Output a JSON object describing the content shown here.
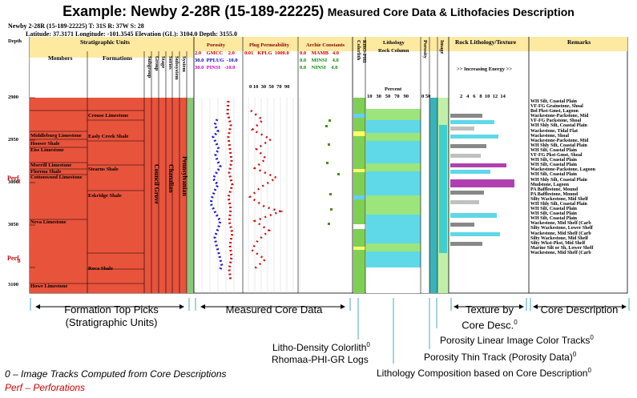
{
  "title": {
    "main": "Example: Newby 2-28R (15-189-22225)",
    "sub": "Measured Core Data & Lithofacies Description"
  },
  "well_header": {
    "line1": "Newby 2-28R (15-189-22225) T: 31S R: 37W S: 28",
    "line2": "Latitude: 37.3171 Longitude: -101.3545 Elevation (GL): 3104.0 Depth: 3155.0"
  },
  "columns": {
    "depth": "Depth",
    "strat_units": "Stratigraphic Units",
    "members": "Members",
    "formations": "Formations",
    "subgroup": "Subgroup",
    "group": "Group",
    "stage": "Stage",
    "series": "Series",
    "subsystem": "Subsystem",
    "system": "System",
    "porosity": "Porosity",
    "plug_perm": "Plug Permeability",
    "archie": "Archie Constants",
    "colorlith": "Colorlith",
    "rho_phi": "RHO-PHI",
    "lithology": "Lithology",
    "rock_column": "Rock Column",
    "percent": "Percent",
    "porosity2": "Porosity",
    "image": "Image",
    "rock_lith": "Rock Lithology/Texture",
    "remarks": "Remarks",
    "increasing_energy": ">> Increasing Energy >>"
  },
  "legend_rows": [
    {
      "min": "2.0",
      "name": "GMCC",
      "max": "2.0",
      "color": "#cc0000"
    },
    {
      "min": "30.0",
      "name": "PPLUG",
      "max": "-10.0",
      "color": "#0000cc"
    },
    {
      "min": "30.0",
      "name": "PINSI",
      "max": "-10.0",
      "color": "#cc00cc"
    },
    {
      "min": "0.01",
      "name": "KPLG",
      "max": "1000.0",
      "color": "#cc0000"
    },
    {
      "min": "0.0",
      "name": "MAMB",
      "max": "4.0",
      "color": "#cc0000"
    },
    {
      "min": "0.0",
      "name": "MINSI",
      "max": "4.0",
      "color": "#008800"
    },
    {
      "min": "0.0",
      "name": "NINSI",
      "max": "4.0",
      "color": "#008800"
    }
  ],
  "percent_ticks": [
    "10",
    "30",
    "50",
    "70",
    "90"
  ],
  "porosity_ticks": [
    "0",
    "50"
  ],
  "energy_ticks": [
    "2",
    "4",
    "6",
    "8",
    "10",
    "12",
    "14"
  ],
  "perm_ticks": [
    "0",
    "10",
    "30",
    "50",
    "70",
    "90"
  ],
  "depth_ticks": [
    "2900",
    "2950",
    "3000",
    "3050",
    "3100"
  ],
  "members": [
    "Middleburg Limestone",
    "Hooser Shale",
    "Eiss Limestone",
    "Morrill Limestone",
    "Florena Shale",
    "Cottonwood Limestone",
    "Neva Limestone",
    "Howe Limestone"
  ],
  "formations": [
    "Crouse Limestone",
    "Easly Creek Shale",
    "Stearns Shale",
    "Eskridge Shale",
    "Roca Shale"
  ],
  "group_labels": [
    "Council Grove",
    "Chanalian",
    "Pennsylvanian"
  ],
  "perf": "Perf",
  "remarks": [
    "WH Silt, Coastal Plain",
    "VF-FG Grainstone, Shoal",
    "Bol Pkst-Gmst, Lagoon",
    "Wackestone-Packstone, Mid",
    "VF-FG Packstone, Shoal",
    "WH Shly Silt, Coastal Plain",
    "Wackestone, Tidal Flat",
    "Wackestone, Shoal",
    "Wackestone-Packstone, Mid",
    "WH Shly Silt, Coastal Plain",
    "WH Silt, Coastal Plain",
    "VF-FG Pkst-Gmst, Shoal",
    "WH Silt, Coastal Plain",
    "WH Silt, Coastal Plain",
    "Wackestone-Packstone, Lagoon",
    "WH Silt, Coastal Plain",
    "WH Shly Silt, Coastal Plain",
    "Mudstone, Lagoon",
    "PA Bafflestone, Mound",
    "PA Bafflestone, Mound",
    "Silty Wackestone, Mid Shelf",
    "WH Shly Silt, Coastal Plain",
    "WH Silt, Coastal Plain",
    "WH Silt, Coastal Plain",
    "WH Silt, Coastal Plain",
    "Wackestone, Mid Shelf (Carb",
    "Silty Wackestone, Lower Shelf",
    "Wackestone, Mid Shelf (Carb",
    "Silty Wackestone, Mid Shelf",
    "Silty Wkst-Pkst, Mid Shelf",
    "Marine Silt or Sh, Lower Shelf",
    "Wackestone, Mid Shelf (Carb"
  ],
  "captions": {
    "formation_top": "Formation Top Picks",
    "strat_units": "(Stratigraphic Units)",
    "measured_core": "Measured Core Data",
    "texture": "Texture by",
    "core_desc": "Core Desc.",
    "core_description": "Core  Description",
    "sup": "0",
    "porosity_linear": "Porosity Linear Image Color Tracks",
    "porosity_thin": "Porosity Thin Track (Porosity Data)",
    "litho_density": "Litho-Density Colorlith",
    "rhomaa": "Rhomaa-PHI-GR Logs",
    "litho_comp": "Lithology Composition based on Core Description",
    "note1": "0 – Image Tracks Computed from Core Descriptions",
    "note2": "Perf – Perforations"
  }
}
